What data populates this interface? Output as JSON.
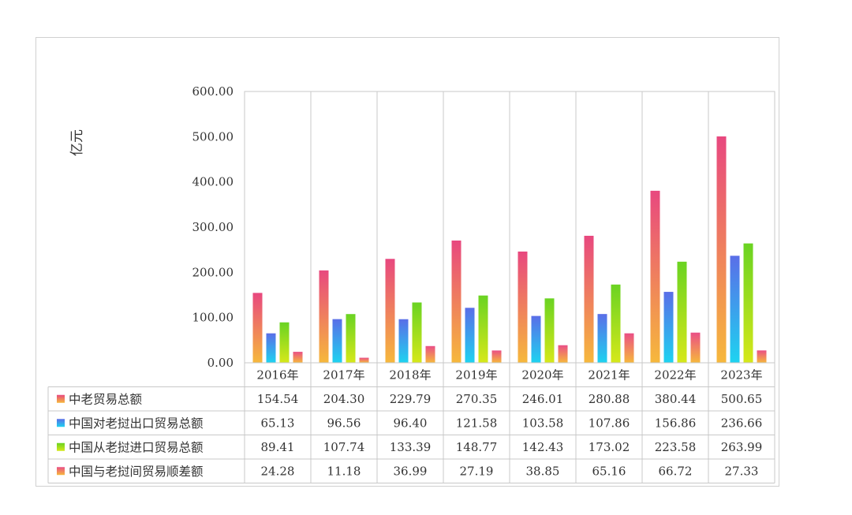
{
  "chart_data": {
    "type": "bar",
    "ylabel": "亿元",
    "ylim": [
      0,
      600
    ],
    "ytick_step": 100,
    "ytick_labels": [
      "0.00",
      "100.00",
      "200.00",
      "300.00",
      "400.00",
      "500.00",
      "600.00"
    ],
    "categories": [
      "2016年",
      "2017年",
      "2018年",
      "2019年",
      "2020年",
      "2021年",
      "2022年",
      "2023年"
    ],
    "grid": "vertical",
    "legend": "data-table",
    "series": [
      {
        "name": "中老贸易总额",
        "values": [
          154.54,
          204.3,
          229.79,
          270.35,
          246.01,
          280.88,
          380.44,
          500.65
        ],
        "labels": [
          "154.54",
          "204.30",
          "229.79",
          "270.35",
          "246.01",
          "280.88",
          "380.44",
          "500.65"
        ],
        "color_top": "#e8487f",
        "color_bottom": "#f6b83c"
      },
      {
        "name": "中国对老挝出口贸易总额",
        "values": [
          65.13,
          96.56,
          96.4,
          121.58,
          103.58,
          107.86,
          156.86,
          236.66
        ],
        "labels": [
          "65.13",
          "96.56",
          "96.40",
          "121.58",
          "103.58",
          "107.86",
          "156.86",
          "236.66"
        ],
        "color_top": "#5a6ee8",
        "color_bottom": "#1ed3f0"
      },
      {
        "name": "中国从老挝进口贸易总额",
        "values": [
          89.41,
          107.74,
          133.39,
          148.77,
          142.43,
          173.02,
          223.58,
          263.99
        ],
        "labels": [
          "89.41",
          "107.74",
          "133.39",
          "148.77",
          "142.43",
          "173.02",
          "223.58",
          "263.99"
        ],
        "color_top": "#6ad322",
        "color_bottom": "#d6e81a"
      },
      {
        "name": "中国与老挝间贸易顺差额",
        "values": [
          24.28,
          11.18,
          36.99,
          27.19,
          38.85,
          65.16,
          66.72,
          27.33
        ],
        "labels": [
          "24.28",
          "11.18",
          "36.99",
          "27.19",
          "38.85",
          "65.16",
          "66.72",
          "27.33"
        ],
        "color_top": "#ea4f86",
        "color_bottom": "#f6b83c"
      }
    ]
  }
}
